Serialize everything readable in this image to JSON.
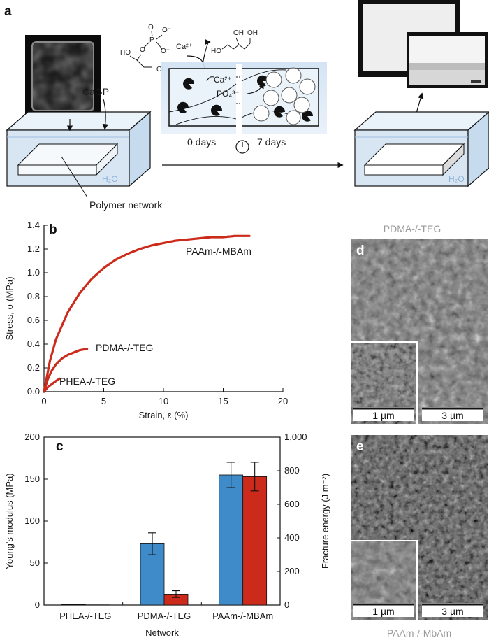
{
  "panel_a": {
    "letter": "a",
    "cagp_label": "CaGP",
    "water_label_left": "H₂O",
    "water_label_right": "H₂O",
    "polymer_label": "Polymer network",
    "ion_ca": "Ca²⁺",
    "ion_ca_sup": "Ca²⁺",
    "ion_po4": "PO₄³⁻",
    "day0": "0 days",
    "day7": "7 days",
    "molecule_labels": {
      "o1": "O",
      "o2": "O⁻",
      "o3": "O⁻",
      "p": "P",
      "o4": "O",
      "ho1": "HO",
      "oh1": "OH",
      "ho2": "HO",
      "oh2": "OH",
      "oh3": "OH"
    }
  },
  "panel_b": {
    "letter": "b",
    "xlabel": "Strain, ε (%)",
    "ylabel": "Stress, σ (MPa)",
    "xticks": [
      "0",
      "5",
      "10",
      "15",
      "20"
    ],
    "yticks": [
      "0.0",
      "0.2",
      "0.4",
      "0.6",
      "0.8",
      "1.0",
      "1.2",
      "1.4"
    ],
    "curve_labels": [
      "PAAm-/-MBAm",
      "PDMA-/-TEG",
      "PHEA-/-TEG"
    ]
  },
  "panel_c": {
    "letter": "c",
    "xlabel": "Network",
    "ylabel_left": "Young's modulus (MPa)",
    "ylabel_right": "Fracture energy (J m⁻²)",
    "yticks_left": [
      "0",
      "50",
      "100",
      "150",
      "200"
    ],
    "yticks_right": [
      "0",
      "200",
      "400",
      "600",
      "800",
      "1,000"
    ],
    "categories": [
      "PHEA-/-TEG",
      "PDMA-/-TEG",
      "PAAm-/-MBAm"
    ]
  },
  "panel_d": {
    "letter": "d",
    "title": "PDMA-/-TEG",
    "scale_inset": "1 µm",
    "scale_main": "3 µm"
  },
  "panel_e": {
    "letter": "e",
    "title": "PAAm-/-MbAm",
    "scale_inset": "1 µm",
    "scale_main": "3 µm"
  },
  "colors": {
    "red": "#cc2a1a",
    "blue": "#3f8ac8",
    "water": "#dce9f5"
  },
  "chart_data": [
    {
      "type": "line",
      "panel": "b",
      "xlabel": "Strain, ε (%)",
      "ylabel": "Stress, σ (MPa)",
      "xlim": [
        0,
        20
      ],
      "ylim": [
        0,
        1.4
      ],
      "series": [
        {
          "name": "PAAm-/-MBAm",
          "x": [
            0,
            0.5,
            1,
            2,
            3,
            4,
            5,
            6,
            7,
            8,
            9,
            10,
            11,
            12,
            13,
            14,
            15,
            16,
            17.2
          ],
          "y": [
            0,
            0.26,
            0.44,
            0.67,
            0.83,
            0.95,
            1.04,
            1.11,
            1.16,
            1.2,
            1.23,
            1.25,
            1.27,
            1.28,
            1.29,
            1.3,
            1.3,
            1.31,
            1.31
          ]
        },
        {
          "name": "PDMA-/-TEG",
          "x": [
            0,
            0.3,
            0.6,
            1,
            1.5,
            2,
            2.5,
            3,
            3.6
          ],
          "y": [
            0,
            0.1,
            0.17,
            0.23,
            0.28,
            0.31,
            0.33,
            0.35,
            0.36
          ]
        },
        {
          "name": "PHEA-/-TEG",
          "x": [
            0,
            0.3,
            0.6,
            1,
            1.3
          ],
          "y": [
            0,
            0.035,
            0.06,
            0.09,
            0.11
          ]
        }
      ]
    },
    {
      "type": "bar",
      "panel": "c",
      "categories": [
        "PHEA-/-TEG",
        "PDMA-/-TEG",
        "PAAm-/-MBAm"
      ],
      "xlabel": "Network",
      "series": [
        {
          "name": "Young's modulus (MPa)",
          "axis": "left",
          "values": [
            0.5,
            73,
            155
          ],
          "errors": [
            0.3,
            13,
            15
          ]
        },
        {
          "name": "Fracture energy (J m⁻²)",
          "axis": "right",
          "values": [
            1,
            65,
            765
          ],
          "errors": [
            1,
            20,
            85
          ]
        }
      ],
      "ylim_left": [
        0,
        200
      ],
      "ylim_right": [
        0,
        1000
      ]
    }
  ]
}
